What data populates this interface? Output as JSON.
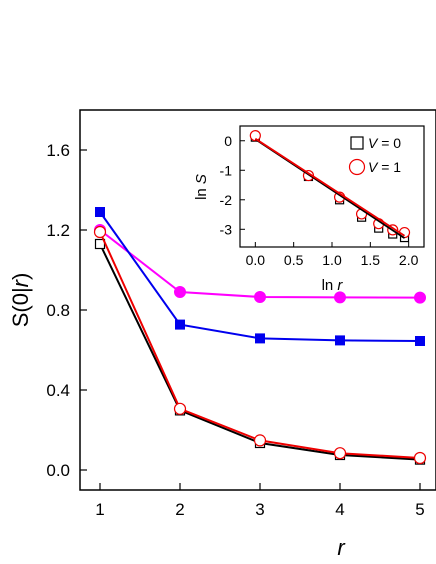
{
  "chart_data": [
    {
      "type": "line",
      "xlabel_var": "r",
      "ylabel_prefix": "S(0|",
      "ylabel_var": "r",
      "ylabel_suffix": ")",
      "xlim": [
        0.75,
        5.2
      ],
      "ylim": [
        -0.1,
        1.8
      ],
      "xticks": [
        1,
        2,
        3,
        4,
        5
      ],
      "xtick_labels": [
        "1",
        "2",
        "3",
        "4",
        "5"
      ],
      "yticks": [
        0.0,
        0.4,
        0.8,
        1.2,
        1.6
      ],
      "ytick_labels": [
        "0.0",
        "0.4",
        "0.8",
        "1.2",
        "1.6"
      ],
      "grid": false,
      "x": [
        1,
        2,
        3,
        4,
        5
      ],
      "series": [
        {
          "color": "#ff00ff",
          "marker": "filled-circle",
          "values": [
            1.2,
            0.89,
            0.865,
            0.863,
            0.862
          ]
        },
        {
          "color": "#0000ee",
          "marker": "filled-square",
          "values": [
            1.29,
            0.727,
            0.658,
            0.648,
            0.645
          ]
        },
        {
          "color": "#000000",
          "marker": "open-square",
          "values": [
            1.13,
            0.298,
            0.135,
            0.075,
            0.052
          ]
        },
        {
          "color": "#ee0000",
          "marker": "open-circle",
          "values": [
            1.19,
            0.306,
            0.148,
            0.084,
            0.06
          ]
        }
      ]
    },
    {
      "type": "scatter",
      "xlabel_prefix": "ln ",
      "xlabel_var": "r",
      "ylabel_prefix": "ln ",
      "ylabel_var": "S",
      "xlim": [
        -0.2,
        2.2
      ],
      "ylim": [
        -3.6,
        0.5
      ],
      "xticks": [
        0.0,
        0.5,
        1.0,
        1.5,
        2.0
      ],
      "xtick_labels": [
        "0.0",
        "0.5",
        "1.0",
        "1.5",
        "2.0"
      ],
      "yticks": [
        0,
        -1,
        -2,
        -3
      ],
      "ytick_labels": [
        "0",
        "-1",
        "-2",
        "-3"
      ],
      "grid": false,
      "legend_position": "top-right",
      "series": [
        {
          "legend_var": "V",
          "legend_value": " = 0",
          "color": "#000000",
          "marker": "open-square",
          "x": [
            0.0,
            0.693,
            1.099,
            1.386,
            1.609,
            1.792,
            1.946
          ],
          "y": [
            0.122,
            -1.21,
            -2.0,
            -2.59,
            -2.96,
            -3.16,
            -3.28
          ],
          "fit": [
            [
              0.0,
              0.05
            ],
            [
              1.946,
              -3.3
            ]
          ]
        },
        {
          "legend_var": "V",
          "legend_value": " = 1",
          "color": "#ee0000",
          "marker": "open-circle",
          "x": [
            0.0,
            0.693,
            1.099,
            1.386,
            1.609,
            1.792,
            1.946
          ],
          "y": [
            0.174,
            -1.18,
            -1.91,
            -2.48,
            -2.81,
            -3.02,
            -3.11
          ],
          "fit": [
            [
              0.0,
              0.07
            ],
            [
              1.946,
              -3.22
            ]
          ]
        }
      ]
    }
  ]
}
